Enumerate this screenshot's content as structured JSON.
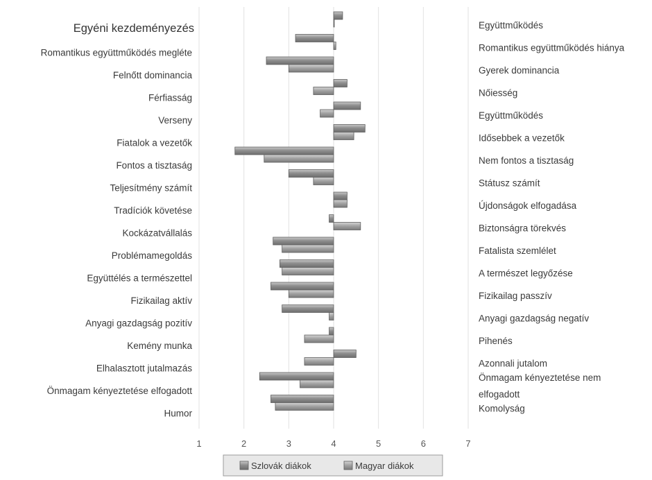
{
  "chart_data": {
    "type": "bar",
    "orientation": "horizontal",
    "bar_origin": 4,
    "xlim": [
      1,
      7
    ],
    "xticks": [
      "1",
      "2",
      "3",
      "4",
      "5",
      "6",
      "7"
    ],
    "grid": true,
    "legend_position": "bottom",
    "left_labels": [
      "Egyéni kezdeményezés",
      "Romantikus együttműködés megléte",
      "Felnőtt dominancia",
      "Férfiasság",
      "Verseny",
      "Fiatalok a vezetők",
      "Fontos a tisztaság",
      "Teljesítmény számít",
      "Tradíciók követése",
      "Kockázatvállalás",
      "Problémamegoldás",
      "Együttélés a természettel",
      "Fizikailag aktív",
      "Anyagi gazdagság pozitív",
      "Kemény munka",
      "Elhalasztott jutalmazás",
      "Önmagam kényeztetése elfogadott",
      "Humor"
    ],
    "right_labels": [
      [
        "Együttműködés"
      ],
      [
        "Romantikus együttműködés hiánya"
      ],
      [
        "Gyerek dominancia"
      ],
      [
        "Nőiesség"
      ],
      [
        "Együttműködés"
      ],
      [
        "Idősebbek a vezetők"
      ],
      [
        "Nem fontos a tisztaság"
      ],
      [
        "Státusz számít"
      ],
      [
        "Újdonságok elfogadása"
      ],
      [
        "Biztonságra törekvés"
      ],
      [
        "Fatalista szemlélet"
      ],
      [
        "A természet legyőzése"
      ],
      [
        "Fizikailag passzív"
      ],
      [
        "Anyagi gazdagság negatív"
      ],
      [
        "Pihenés"
      ],
      [
        "Azonnali jutalom"
      ],
      [
        "Önmagam kényeztetése nem",
        "elfogadott"
      ],
      [
        "Komolyság"
      ]
    ],
    "series": [
      {
        "name": "Szlovák diákok",
        "color": "#8a8a8a",
        "values": [
          4.2,
          3.15,
          2.5,
          4.3,
          4.6,
          4.7,
          1.8,
          3.0,
          4.3,
          3.9,
          2.65,
          2.8,
          2.6,
          2.85,
          3.9,
          4.5,
          2.35,
          2.6
        ]
      },
      {
        "name": "Magyar diákok",
        "color": "#9a9a9a",
        "values": [
          4.0,
          4.05,
          3.0,
          3.55,
          3.7,
          4.45,
          2.45,
          3.55,
          4.3,
          4.6,
          2.85,
          2.85,
          3.0,
          3.9,
          3.35,
          3.35,
          3.25,
          2.7
        ]
      }
    ]
  }
}
